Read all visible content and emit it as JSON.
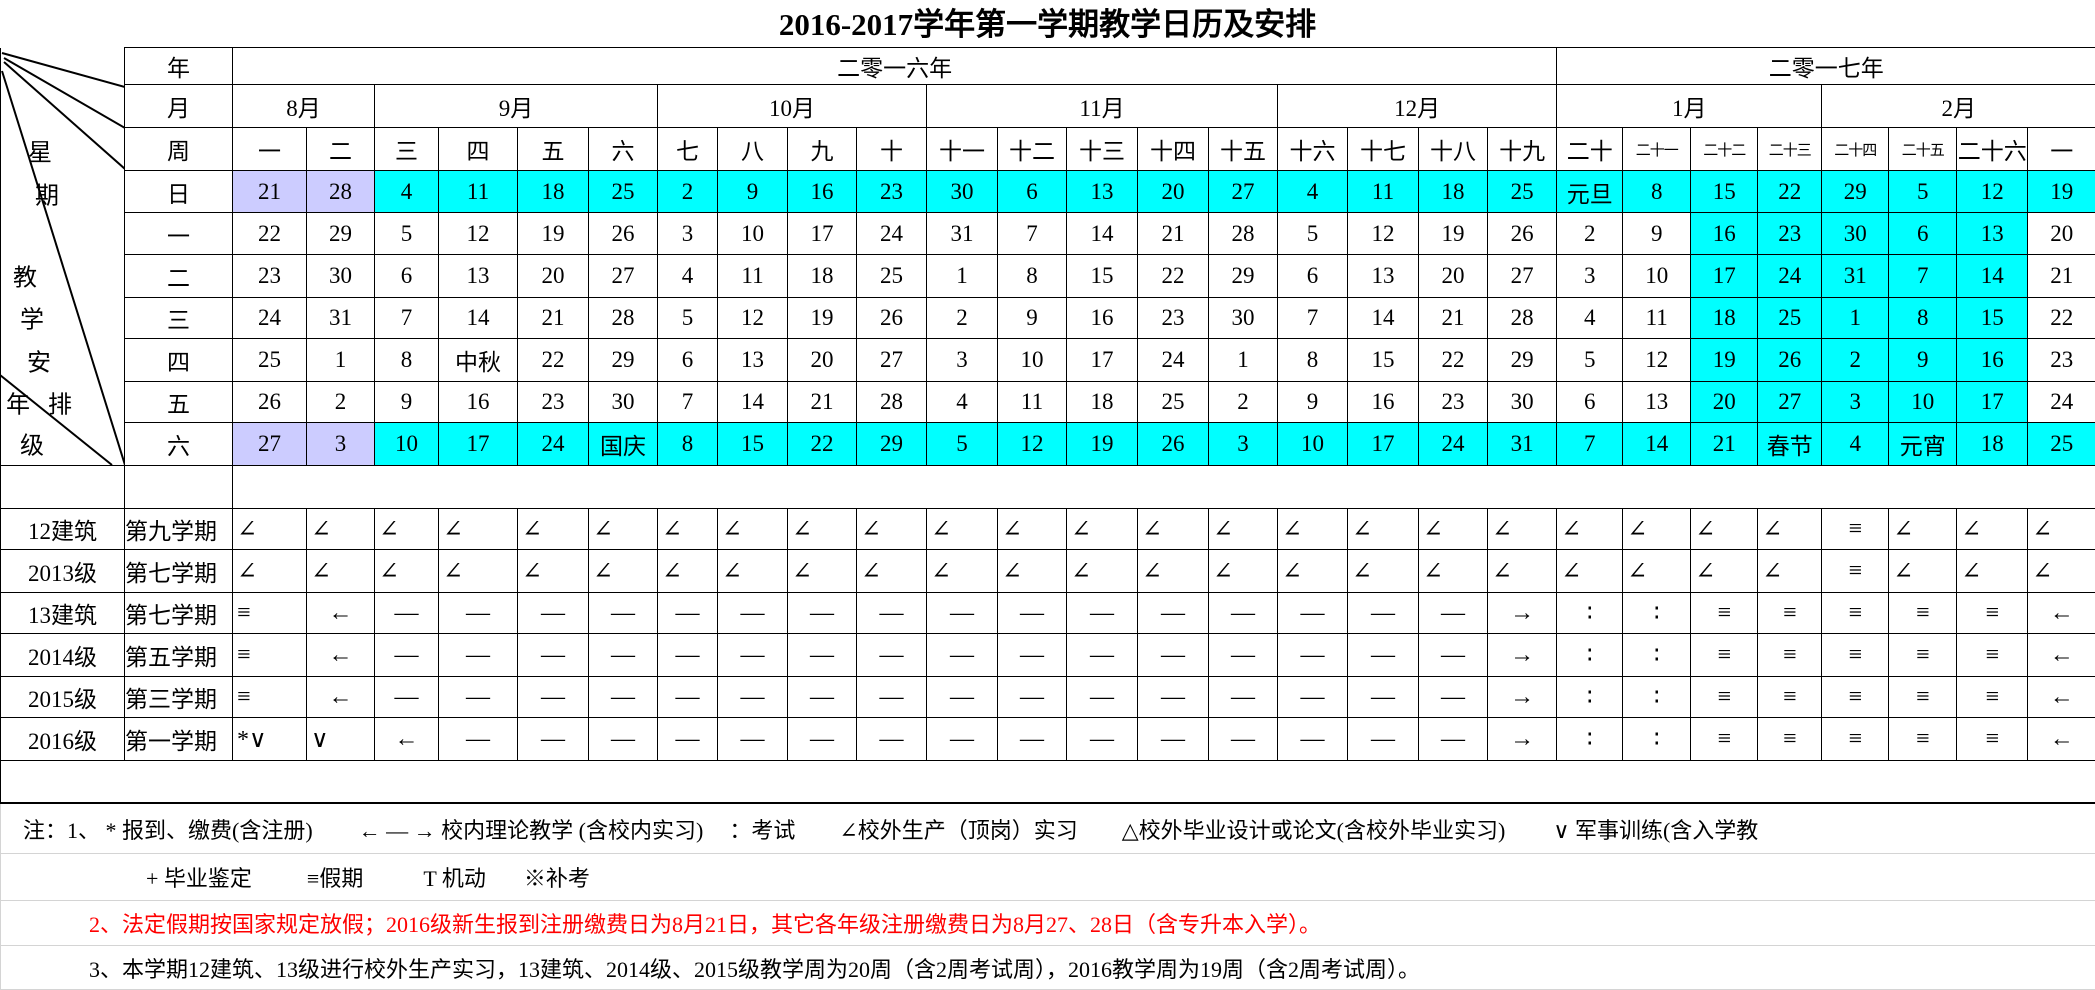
{
  "title": "2016-2017学年第一学期教学日历及安排",
  "corner_labels": {
    "xing": "星",
    "qi": "期",
    "jiao": "教",
    "xue": "学",
    "an": "安",
    "nian": "年",
    "pai": "排",
    "ji": "级"
  },
  "header": {
    "year_label": "年",
    "month_label": "月",
    "week_label": "周",
    "years": [
      {
        "label": "二零一六年",
        "span": 19
      },
      {
        "label": "二零一七年",
        "span": 8
      }
    ],
    "months": [
      {
        "label": "8月",
        "span": 2
      },
      {
        "label": "9月",
        "span": 4
      },
      {
        "label": "10月",
        "span": 4
      },
      {
        "label": "11月",
        "span": 5
      },
      {
        "label": "12月",
        "span": 4
      },
      {
        "label": "1月",
        "span": 4
      },
      {
        "label": "2月",
        "span": 4
      }
    ],
    "weeks": [
      "一",
      "二",
      "三",
      "四",
      "五",
      "六",
      "七",
      "八",
      "九",
      "十",
      "十一",
      "十二",
      "十三",
      "十四",
      "十五",
      "十六",
      "十七",
      "十八",
      "十九",
      "二十",
      "二十一",
      "二十二",
      "二十三",
      "二十四",
      "二十五",
      "二十六",
      "一"
    ]
  },
  "fill_colors": {
    "C": "#00ffff",
    "L": "#ccccff"
  },
  "calendar": [
    {
      "day": "日",
      "cells": [
        "21",
        "28",
        "4",
        "11",
        "18",
        "25",
        "2",
        "9",
        "16",
        "23",
        "30",
        "6",
        "13",
        "20",
        "27",
        "4",
        "11",
        "18",
        "25",
        "元旦",
        "8",
        "15",
        "22",
        "29",
        "5",
        "12",
        "19"
      ],
      "fill": [
        "L",
        "L",
        "C",
        "C",
        "C",
        "C",
        "C",
        "C",
        "C",
        "C",
        "C",
        "C",
        "C",
        "C",
        "C",
        "C",
        "C",
        "C",
        "C",
        "C",
        "C",
        "C",
        "C",
        "C",
        "C",
        "C",
        "C"
      ]
    },
    {
      "day": "一",
      "cells": [
        "22",
        "29",
        "5",
        "12",
        "19",
        "26",
        "3",
        "10",
        "17",
        "24",
        "31",
        "7",
        "14",
        "21",
        "28",
        "5",
        "12",
        "19",
        "26",
        "2",
        "9",
        "16",
        "23",
        "30",
        "6",
        "13",
        "20"
      ],
      "fill": [
        "",
        "",
        "",
        "",
        "",
        "",
        "",
        "",
        "",
        "",
        "",
        "",
        "",
        "",
        "",
        "",
        "",
        "",
        "",
        "",
        "",
        "C",
        "C",
        "C",
        "C",
        "C",
        ""
      ]
    },
    {
      "day": "二",
      "cells": [
        "23",
        "30",
        "6",
        "13",
        "20",
        "27",
        "4",
        "11",
        "18",
        "25",
        "1",
        "8",
        "15",
        "22",
        "29",
        "6",
        "13",
        "20",
        "27",
        "3",
        "10",
        "17",
        "24",
        "31",
        "7",
        "14",
        "21"
      ],
      "fill": [
        "",
        "",
        "",
        "",
        "",
        "",
        "",
        "",
        "",
        "",
        "",
        "",
        "",
        "",
        "",
        "",
        "",
        "",
        "",
        "",
        "",
        "C",
        "C",
        "C",
        "C",
        "C",
        ""
      ]
    },
    {
      "day": "三",
      "cells": [
        "24",
        "31",
        "7",
        "14",
        "21",
        "28",
        "5",
        "12",
        "19",
        "26",
        "2",
        "9",
        "16",
        "23",
        "30",
        "7",
        "14",
        "21",
        "28",
        "4",
        "11",
        "18",
        "25",
        "1",
        "8",
        "15",
        "22"
      ],
      "fill": [
        "",
        "",
        "",
        "",
        "",
        "",
        "",
        "",
        "",
        "",
        "",
        "",
        "",
        "",
        "",
        "",
        "",
        "",
        "",
        "",
        "",
        "C",
        "C",
        "C",
        "C",
        "C",
        ""
      ]
    },
    {
      "day": "四",
      "cells": [
        "25",
        "1",
        "8",
        "中秋",
        "22",
        "29",
        "6",
        "13",
        "20",
        "27",
        "3",
        "10",
        "17",
        "24",
        "1",
        "8",
        "15",
        "22",
        "29",
        "5",
        "12",
        "19",
        "26",
        "2",
        "9",
        "16",
        "23"
      ],
      "fill": [
        "",
        "",
        "",
        "",
        "",
        "",
        "",
        "",
        "",
        "",
        "",
        "",
        "",
        "",
        "",
        "",
        "",
        "",
        "",
        "",
        "",
        "C",
        "C",
        "C",
        "C",
        "C",
        ""
      ]
    },
    {
      "day": "五",
      "cells": [
        "26",
        "2",
        "9",
        "16",
        "23",
        "30",
        "7",
        "14",
        "21",
        "28",
        "4",
        "11",
        "18",
        "25",
        "2",
        "9",
        "16",
        "23",
        "30",
        "6",
        "13",
        "20",
        "27",
        "3",
        "10",
        "17",
        "24"
      ],
      "fill": [
        "",
        "",
        "",
        "",
        "",
        "",
        "",
        "",
        "",
        "",
        "",
        "",
        "",
        "",
        "",
        "",
        "",
        "",
        "",
        "",
        "",
        "C",
        "C",
        "C",
        "C",
        "C",
        ""
      ]
    },
    {
      "day": "六",
      "cells": [
        "27",
        "3",
        "10",
        "17",
        "24",
        "国庆",
        "8",
        "15",
        "22",
        "29",
        "5",
        "12",
        "19",
        "26",
        "3",
        "10",
        "17",
        "24",
        "31",
        "7",
        "14",
        "21",
        "春节",
        "4",
        "元宵",
        "18",
        "25"
      ],
      "fill": [
        "L",
        "L",
        "C",
        "C",
        "C",
        "C",
        "C",
        "C",
        "C",
        "C",
        "C",
        "C",
        "C",
        "C",
        "C",
        "C",
        "C",
        "C",
        "C",
        "C",
        "C",
        "C",
        "C",
        "C",
        "C",
        "C",
        "C"
      ]
    }
  ],
  "arrangement": [
    {
      "grade": "12建筑",
      "term": "第九学期",
      "cells": [
        "∠",
        "∠",
        "∠",
        "∠",
        "∠",
        "∠",
        "∠",
        "∠",
        "∠",
        "∠",
        "∠",
        "∠",
        "∠",
        "∠",
        "∠",
        "∠",
        "∠",
        "∠",
        "∠",
        "∠",
        "∠",
        "∠",
        "∠",
        "≡",
        "∠",
        "∠",
        "∠"
      ]
    },
    {
      "grade": "2013级",
      "term": "第七学期",
      "cells": [
        "∠",
        "∠",
        "∠",
        "∠",
        "∠",
        "∠",
        "∠",
        "∠",
        "∠",
        "∠",
        "∠",
        "∠",
        "∠",
        "∠",
        "∠",
        "∠",
        "∠",
        "∠",
        "∠",
        "∠",
        "∠",
        "∠",
        "∠",
        "≡",
        "∠",
        "∠",
        "∠"
      ]
    },
    {
      "grade": "13建筑",
      "term": "第七学期",
      "cells": [
        "≡",
        "←",
        "—",
        "—",
        "—",
        "—",
        "—",
        "—",
        "—",
        "—",
        "—",
        "—",
        "—",
        "—",
        "—",
        "—",
        "—",
        "—",
        "→",
        "∶",
        "∶",
        "≡",
        "≡",
        "≡",
        "≡",
        "≡",
        "←"
      ]
    },
    {
      "grade": "2014级",
      "term": "第五学期",
      "cells": [
        "≡",
        "←",
        "—",
        "—",
        "—",
        "—",
        "—",
        "—",
        "—",
        "—",
        "—",
        "—",
        "—",
        "—",
        "—",
        "—",
        "—",
        "—",
        "→",
        "∶",
        "∶",
        "≡",
        "≡",
        "≡",
        "≡",
        "≡",
        "←"
      ]
    },
    {
      "grade": "2015级",
      "term": "第三学期",
      "cells": [
        "≡",
        "←",
        "—",
        "—",
        "—",
        "—",
        "—",
        "—",
        "—",
        "—",
        "—",
        "—",
        "—",
        "—",
        "—",
        "—",
        "—",
        "—",
        "→",
        "∶",
        "∶",
        "≡",
        "≡",
        "≡",
        "≡",
        "≡",
        "←"
      ]
    },
    {
      "grade": "2016级",
      "term": "第一学期",
      "cells": [
        "*∨",
        "∨",
        "←",
        "—",
        "—",
        "—",
        "—",
        "—",
        "—",
        "—",
        "—",
        "—",
        "—",
        "—",
        "—",
        "—",
        "—",
        "—",
        "→",
        "∶",
        "∶",
        "≡",
        "≡",
        "≡",
        "≡",
        "≡",
        "←"
      ]
    }
  ],
  "notes": {
    "line1": [
      "注：1、 * 报到、缴费(含注册)",
      "← — → 校内理论教学 (含校内实习)",
      "：考试",
      "∠校外生产（顶岗）实习",
      "△校外毕业设计或论文(含校外毕业实习)",
      "∨ 军事训练(含入学教"
    ],
    "line2": [
      "+ 毕业鉴定",
      "≡假期",
      "T 机动",
      "※补考"
    ],
    "line3": "2、法定假期按国家规定放假；2016级新生报到注册缴费日为8月21日，其它各年级注册缴费日为8月27、28日（含专升本入学）。",
    "line4": "3、本学期12建筑、13级进行校外生产实习，13建筑、2014级、2015级教学周为20周（含2周考试周），2016教学周为19周（含2周考试周）。",
    "line3_color": "#ff0000"
  }
}
